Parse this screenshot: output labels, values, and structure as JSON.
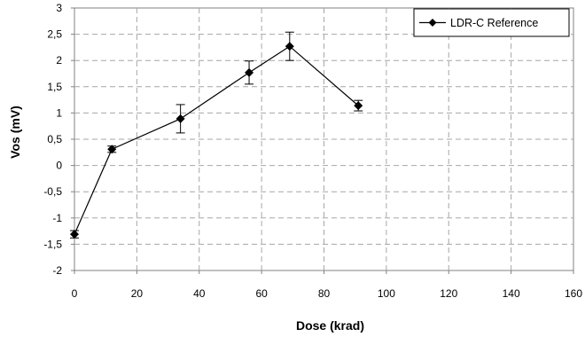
{
  "chart_data": {
    "type": "line",
    "xlabel": "Dose   (krad)",
    "ylabel": "Vos   (mV)",
    "xlim": [
      0,
      160
    ],
    "ylim": [
      -2,
      3
    ],
    "x_ticks": [
      0,
      20,
      40,
      60,
      80,
      100,
      120,
      140,
      160
    ],
    "y_ticks": [
      -2,
      -1.5,
      -1,
      -0.5,
      0,
      0.5,
      1,
      1.5,
      2,
      2.5,
      3
    ],
    "x_tick_labels": [
      "0",
      "20",
      "40",
      "60",
      "80",
      "100",
      "120",
      "140",
      "160"
    ],
    "y_tick_labels": [
      "-2",
      "-1,5",
      "-1",
      "-0,5",
      "0",
      "0,5",
      "1",
      "1,5",
      "2",
      "2,5",
      "3"
    ],
    "grid": true,
    "legend_position": "top-right",
    "series": [
      {
        "name": "LDR-C Reference",
        "marker": "diamond",
        "color": "#000000",
        "x": [
          0,
          12,
          34,
          56,
          69,
          91
        ],
        "y": [
          -1.31,
          0.31,
          0.89,
          1.77,
          2.27,
          1.14
        ],
        "error": [
          0.07,
          0.06,
          0.27,
          0.22,
          0.27,
          0.1
        ]
      }
    ]
  }
}
